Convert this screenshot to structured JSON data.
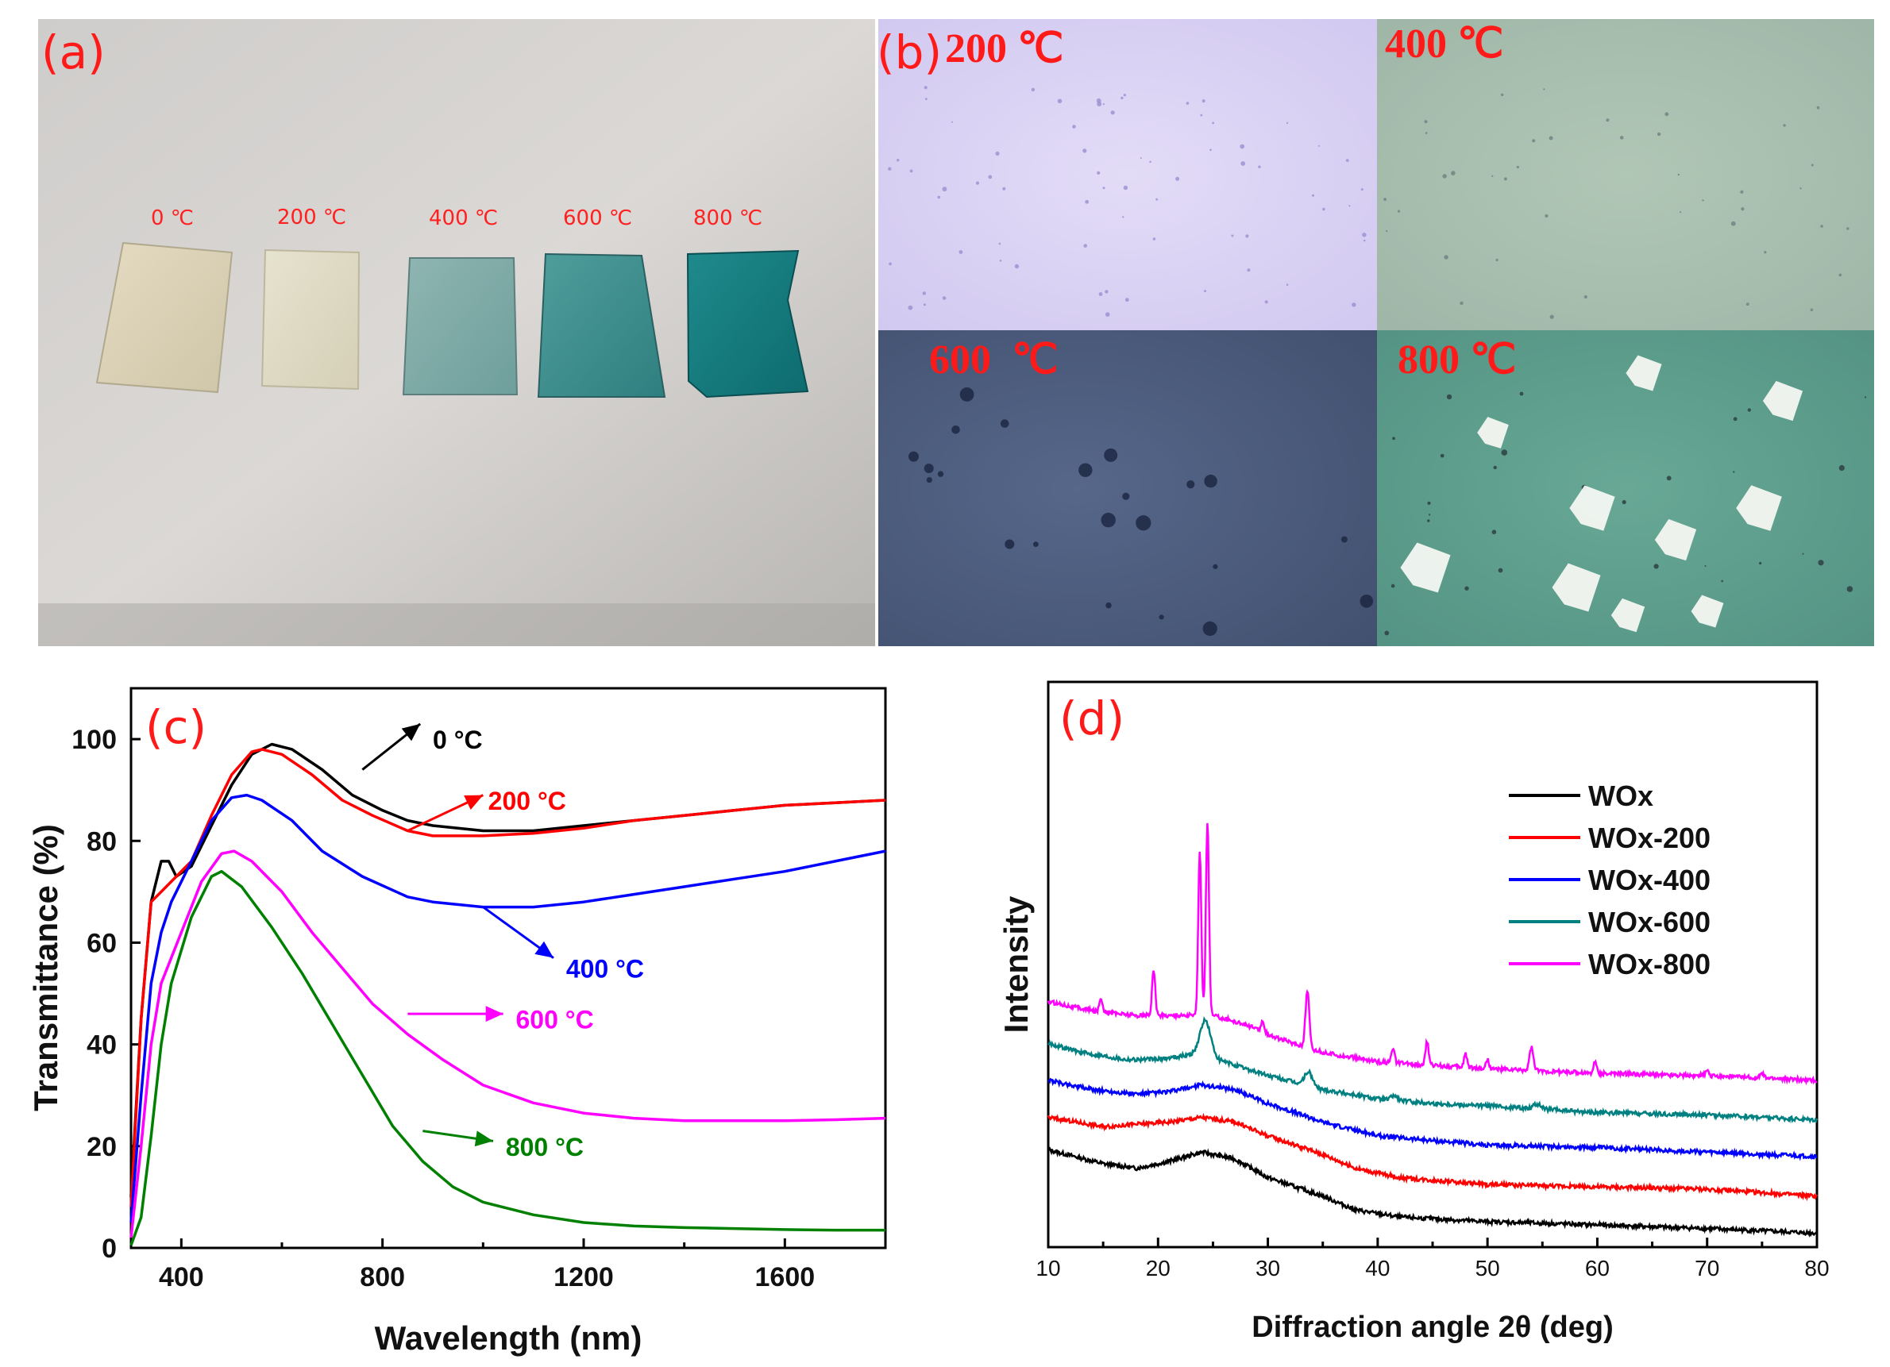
{
  "panel_a": {
    "label": "(a)",
    "sample_labels": [
      "0 ℃",
      "200 ℃",
      "400 ℃",
      "600 ℃",
      "800 ℃"
    ]
  },
  "panel_b": {
    "label": "(b)",
    "image_labels": [
      "200 ℃",
      "400 ℃",
      "600  ℃",
      "800 ℃"
    ]
  },
  "chart_data": [
    {
      "panel": "(c)",
      "type": "line",
      "title": "",
      "xlabel": "Wavelength (nm)",
      "ylabel": "Transmittance (%)",
      "xlim": [
        300,
        1800
      ],
      "ylim": [
        0,
        110
      ],
      "xticks": [
        400,
        800,
        1200,
        1600
      ],
      "yticks": [
        0,
        20,
        40,
        60,
        80,
        100
      ],
      "series": [
        {
          "name": "0 °C",
          "color": "#000000",
          "points": [
            [
              300,
              10
            ],
            [
              320,
              45
            ],
            [
              340,
              68
            ],
            [
              360,
              76
            ],
            [
              375,
              76
            ],
            [
              390,
              73
            ],
            [
              420,
              75
            ],
            [
              460,
              83
            ],
            [
              500,
              91
            ],
            [
              540,
              97
            ],
            [
              580,
              99
            ],
            [
              620,
              98
            ],
            [
              680,
              94
            ],
            [
              740,
              89
            ],
            [
              800,
              86
            ],
            [
              850,
              84
            ],
            [
              900,
              83
            ],
            [
              1000,
              82
            ],
            [
              1100,
              82
            ],
            [
              1200,
              83
            ],
            [
              1300,
              84
            ],
            [
              1400,
              85
            ],
            [
              1500,
              86
            ],
            [
              1600,
              87
            ],
            [
              1700,
              87.5
            ],
            [
              1800,
              88
            ]
          ]
        },
        {
          "name": "200 °C",
          "color": "#ff0000",
          "points": [
            [
              300,
              8
            ],
            [
              320,
              45
            ],
            [
              340,
              68
            ],
            [
              380,
              72
            ],
            [
              420,
              76
            ],
            [
              460,
              85
            ],
            [
              500,
              93
            ],
            [
              540,
              97.5
            ],
            [
              560,
              98
            ],
            [
              600,
              97
            ],
            [
              660,
              93
            ],
            [
              720,
              88
            ],
            [
              780,
              85
            ],
            [
              850,
              82
            ],
            [
              900,
              81
            ],
            [
              1000,
              81
            ],
            [
              1100,
              81.5
            ],
            [
              1200,
              82.5
            ],
            [
              1300,
              84
            ],
            [
              1400,
              85
            ],
            [
              1500,
              86
            ],
            [
              1600,
              87
            ],
            [
              1700,
              87.5
            ],
            [
              1800,
              88
            ]
          ]
        },
        {
          "name": "400 °C",
          "color": "#0000ff",
          "points": [
            [
              300,
              5
            ],
            [
              320,
              30
            ],
            [
              340,
              52
            ],
            [
              360,
              62
            ],
            [
              380,
              68
            ],
            [
              420,
              76
            ],
            [
              460,
              84
            ],
            [
              500,
              88.5
            ],
            [
              530,
              89
            ],
            [
              560,
              88
            ],
            [
              620,
              84
            ],
            [
              680,
              78
            ],
            [
              760,
              73
            ],
            [
              850,
              69
            ],
            [
              900,
              68
            ],
            [
              1000,
              67
            ],
            [
              1100,
              67
            ],
            [
              1200,
              68
            ],
            [
              1300,
              69.5
            ],
            [
              1400,
              71
            ],
            [
              1500,
              72.5
            ],
            [
              1600,
              74
            ],
            [
              1700,
              76
            ],
            [
              1800,
              78
            ]
          ]
        },
        {
          "name": "600 °C",
          "color": "#ff00ff",
          "points": [
            [
              300,
              2
            ],
            [
              320,
              20
            ],
            [
              340,
              40
            ],
            [
              360,
              52
            ],
            [
              400,
              62
            ],
            [
              440,
              72
            ],
            [
              480,
              77.5
            ],
            [
              505,
              78
            ],
            [
              540,
              76
            ],
            [
              600,
              70
            ],
            [
              660,
              62
            ],
            [
              720,
              55
            ],
            [
              780,
              48
            ],
            [
              850,
              42
            ],
            [
              920,
              37
            ],
            [
              1000,
              32
            ],
            [
              1100,
              28.5
            ],
            [
              1200,
              26.5
            ],
            [
              1300,
              25.5
            ],
            [
              1400,
              25
            ],
            [
              1500,
              25
            ],
            [
              1600,
              25
            ],
            [
              1700,
              25.2
            ],
            [
              1800,
              25.5
            ]
          ]
        },
        {
          "name": "800 °C",
          "color": "#008000",
          "points": [
            [
              300,
              0.5
            ],
            [
              320,
              6
            ],
            [
              340,
              22
            ],
            [
              360,
              40
            ],
            [
              380,
              52
            ],
            [
              420,
              65
            ],
            [
              460,
              73
            ],
            [
              480,
              74
            ],
            [
              520,
              71
            ],
            [
              580,
              63
            ],
            [
              640,
              54
            ],
            [
              700,
              44
            ],
            [
              760,
              34
            ],
            [
              820,
              24
            ],
            [
              880,
              17
            ],
            [
              940,
              12
            ],
            [
              1000,
              9
            ],
            [
              1100,
              6.5
            ],
            [
              1200,
              5
            ],
            [
              1300,
              4.3
            ],
            [
              1400,
              4
            ],
            [
              1500,
              3.8
            ],
            [
              1600,
              3.6
            ],
            [
              1700,
              3.5
            ],
            [
              1800,
              3.5
            ]
          ]
        }
      ],
      "annotations": [
        {
          "text": "0 °C",
          "color": "#000000"
        },
        {
          "text": "200 °C",
          "color": "#ff0000"
        },
        {
          "text": "400 °C",
          "color": "#0000ff"
        },
        {
          "text": "600 °C",
          "color": "#ff00ff"
        },
        {
          "text": "800 °C",
          "color": "#008000"
        }
      ]
    },
    {
      "panel": "(d)",
      "type": "line",
      "title": "",
      "xlabel": "Diffraction angle 2θ (deg)",
      "ylabel": "Intensity",
      "xlim": [
        10,
        80
      ],
      "ylim": [
        0,
        100
      ],
      "xticks": [
        10,
        20,
        30,
        40,
        50,
        60,
        70,
        80
      ],
      "yticks": [],
      "series": [
        {
          "name": "WOx",
          "color": "#000000",
          "baseline": [
            [
              10,
              21
            ],
            [
              15,
              18
            ],
            [
              18,
              17
            ],
            [
              21,
              18.5
            ],
            [
              24,
              20.5
            ],
            [
              27,
              19
            ],
            [
              30,
              15
            ],
            [
              35,
              11
            ],
            [
              38,
              8
            ],
            [
              42,
              6.5
            ],
            [
              50,
              5.5
            ],
            [
              60,
              4.8
            ],
            [
              70,
              4
            ],
            [
              80,
              3
            ]
          ],
          "peaks": []
        },
        {
          "name": "WOx-200",
          "color": "#ff0000",
          "baseline": [
            [
              10,
              28
            ],
            [
              15,
              26
            ],
            [
              18,
              26.5
            ],
            [
              21,
              27
            ],
            [
              24,
              28
            ],
            [
              27,
              27
            ],
            [
              30,
              24
            ],
            [
              35,
              20
            ],
            [
              38,
              17
            ],
            [
              42,
              15
            ],
            [
              50,
              13.5
            ],
            [
              60,
              13
            ],
            [
              70,
              12.5
            ],
            [
              80,
              11
            ]
          ],
          "peaks": []
        },
        {
          "name": "WOx-400",
          "color": "#0000ff",
          "baseline": [
            [
              10,
              36
            ],
            [
              14,
              34
            ],
            [
              18,
              33
            ],
            [
              21,
              33.5
            ],
            [
              24,
              35
            ],
            [
              27,
              34
            ],
            [
              30,
              31
            ],
            [
              35,
              27
            ],
            [
              40,
              24
            ],
            [
              45,
              23
            ],
            [
              50,
              22
            ],
            [
              60,
              21.5
            ],
            [
              70,
              20.5
            ],
            [
              80,
              19.5
            ]
          ],
          "peaks": []
        },
        {
          "name": "WOx-600",
          "color": "#008080",
          "baseline": [
            [
              10,
              44
            ],
            [
              13,
              42
            ],
            [
              17,
              40.5
            ],
            [
              20,
              40.5
            ],
            [
              23,
              41.5
            ],
            [
              26,
              40
            ],
            [
              30,
              37
            ],
            [
              35,
              34
            ],
            [
              40,
              32
            ],
            [
              45,
              31
            ],
            [
              50,
              30.5
            ],
            [
              60,
              29
            ],
            [
              70,
              28.5
            ],
            [
              80,
              27.5
            ]
          ],
          "peaks": [
            [
              24.3,
              8,
              0.7
            ],
            [
              33.7,
              3,
              0.5
            ],
            [
              41.5,
              1,
              0.4
            ],
            [
              54.5,
              1,
              0.5
            ]
          ]
        },
        {
          "name": "WOx-800",
          "color": "#ff00ff",
          "baseline": [
            [
              10,
              53
            ],
            [
              14,
              51
            ],
            [
              18,
              50
            ],
            [
              22,
              50
            ],
            [
              25,
              50
            ],
            [
              28,
              48
            ],
            [
              31,
              45
            ],
            [
              35,
              42
            ],
            [
              40,
              40
            ],
            [
              50,
              38.5
            ],
            [
              60,
              37.5
            ],
            [
              70,
              37
            ],
            [
              80,
              36
            ]
          ],
          "peaks": [
            [
              14.8,
              3,
              0.2
            ],
            [
              19.6,
              10,
              0.2
            ],
            [
              23.8,
              35,
              0.2
            ],
            [
              24.5,
              42,
              0.2
            ],
            [
              29.5,
              2,
              0.2
            ],
            [
              33.6,
              12,
              0.25
            ],
            [
              41.4,
              3,
              0.2
            ],
            [
              44.5,
              5,
              0.2
            ],
            [
              48.0,
              3,
              0.2
            ],
            [
              50,
              2,
              0.2
            ],
            [
              54.0,
              5,
              0.25
            ],
            [
              59.8,
              2.5,
              0.2
            ],
            [
              70,
              1,
              0.2
            ],
            [
              75,
              1,
              0.2
            ]
          ]
        }
      ],
      "legend": [
        "WOx",
        "WOx-200",
        "WOx-400",
        "WOx-600",
        "WOx-800"
      ]
    }
  ],
  "colors": {
    "panel_label": "#ff1a1a",
    "photo_bg": "#d4d2cf",
    "micro_200": "#d7d0f1",
    "micro_400": "#a9bfae",
    "micro_600": "#4c5c7a",
    "micro_800": "#5d9c8a"
  }
}
